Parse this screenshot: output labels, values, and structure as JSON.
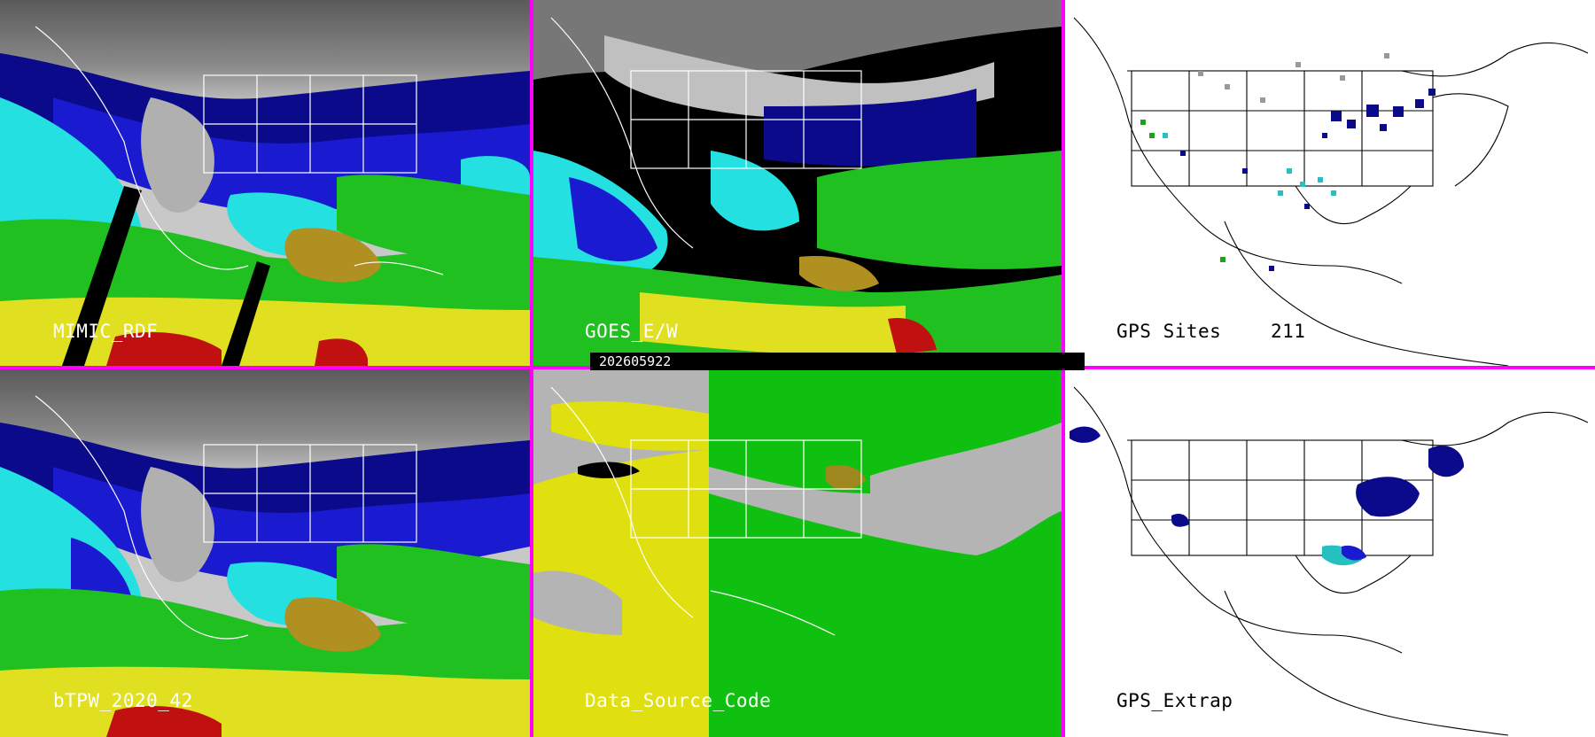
{
  "timestamp": "202605922",
  "colors": {
    "divider": "#ff00ff",
    "dry_gray": "#b0b0b0",
    "blue_dark": "#0a0a8a",
    "blue": "#1a1ad0",
    "cyan": "#25e0e0",
    "green": "#20c020",
    "olive": "#b09020",
    "yellow": "#e0e020",
    "red": "#c01010",
    "source_yellow": "#e0e010",
    "source_green": "#10c010",
    "source_gray": "#b4b4b4"
  },
  "panels": [
    {
      "id": "mimic",
      "label": "MIMIC_RDF",
      "type": "tpw"
    },
    {
      "id": "goes",
      "label": "GOES_E/W",
      "type": "goes"
    },
    {
      "id": "gps-sites",
      "label": "GPS Sites",
      "count": "211",
      "type": "gps"
    },
    {
      "id": "btpw",
      "label": "bTPW_2020_42",
      "type": "tpw"
    },
    {
      "id": "source",
      "label": "Data_Source_Code",
      "type": "source"
    },
    {
      "id": "gps-extrap",
      "label": "GPS_Extrap",
      "type": "extrap"
    }
  ]
}
